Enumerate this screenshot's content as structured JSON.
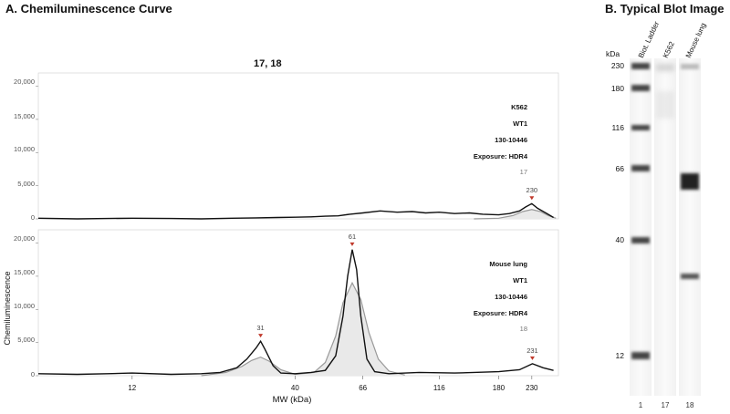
{
  "panel_a": {
    "title": "A. Chemiluminescence Curve",
    "chart_title": "17, 18",
    "ylabel": "Chemiluminescence",
    "xlabel": "MW (kDa)",
    "y_ticks": [
      "20,000",
      "15,000",
      "10,000",
      "5,000",
      "0"
    ],
    "x_ticks": [
      "12",
      "40",
      "66",
      "116",
      "180",
      "230"
    ],
    "top_annotation": [
      "K562",
      "WT1",
      "130-10446",
      "Exposure: HDR4"
    ],
    "top_id": "17",
    "bottom_annotation": [
      "Mouse lung",
      "WT1",
      "130-10446",
      "Exposure: HDR4"
    ],
    "bottom_id": "18"
  },
  "panel_b": {
    "title": "B.   Typical Blot Image",
    "kda_header": "kDa",
    "lanes": [
      "Biot. Ladder",
      "K562",
      "Mouse lung"
    ],
    "lane_numbers": [
      "1",
      "17",
      "18"
    ],
    "ladder_marks": [
      "230",
      "180",
      "116",
      "66",
      "40",
      "12"
    ]
  },
  "chart_data": {
    "type": "line",
    "title": "17, 18",
    "xlabel": "MW (kDa)",
    "ylabel": "Chemiluminescence",
    "x_scale": "log",
    "x_ticks": [
      12,
      40,
      66,
      116,
      180,
      230
    ],
    "ylim": [
      0,
      22000
    ],
    "panels": [
      {
        "sample": "K562",
        "id": "17",
        "series": [
          {
            "kind": "measured",
            "x": [
              6,
              8,
              10,
              12,
              16,
              20,
              25,
              30,
              35,
              40,
              45,
              50,
              55,
              60,
              66,
              75,
              85,
              95,
              105,
              116,
              130,
              145,
              160,
              180,
              195,
              210,
              220,
              230,
              240,
              255,
              270
            ],
            "y": [
              100,
              0,
              50,
              100,
              50,
              0,
              100,
              150,
              200,
              250,
              300,
              400,
              450,
              700,
              900,
              1200,
              1000,
              1100,
              900,
              1000,
              800,
              900,
              700,
              600,
              800,
              1200,
              1800,
              2300,
              1600,
              900,
              200
            ]
          },
          {
            "kind": "fit",
            "x": [
              150,
              180,
              200,
              215,
              230,
              245,
              260,
              275
            ],
            "y": [
              0,
              100,
              500,
              1100,
              1400,
              1100,
              500,
              100
            ]
          }
        ],
        "peaks": [
          {
            "x": 230,
            "label": "230"
          }
        ]
      },
      {
        "sample": "Mouse lung",
        "id": "18",
        "series": [
          {
            "kind": "measured",
            "x": [
              6,
              8,
              10,
              12,
              16,
              20,
              23,
              26,
              28,
              30,
              31,
              32,
              34,
              36,
              40,
              45,
              50,
              54,
              57,
              59,
              61,
              63,
              65,
              68,
              72,
              80,
              100,
              130,
              180,
              210,
              231,
              250,
              270
            ],
            "y": [
              300,
              200,
              300,
              400,
              200,
              300,
              500,
              1200,
              2500,
              4200,
              5200,
              4000,
              1500,
              400,
              300,
              500,
              800,
              3000,
              9000,
              15000,
              19000,
              16000,
              9000,
              2500,
              600,
              300,
              500,
              400,
              600,
              900,
              1800,
              1200,
              800
            ]
          },
          {
            "kind": "fit",
            "x": [
              20,
              24,
              27,
              29,
              31,
              33,
              36,
              40,
              46,
              50,
              54,
              57,
              61,
              65,
              69,
              74,
              80,
              90
            ],
            "y": [
              0,
              500,
              1400,
              2300,
              2800,
              2200,
              900,
              200,
              500,
              2000,
              6000,
              11000,
              14000,
              11500,
              6500,
              2500,
              700,
              100
            ]
          }
        ],
        "peaks": [
          {
            "x": 31,
            "label": "31"
          },
          {
            "x": 61,
            "label": "61"
          },
          {
            "x": 231,
            "label": "231"
          }
        ]
      }
    ]
  }
}
